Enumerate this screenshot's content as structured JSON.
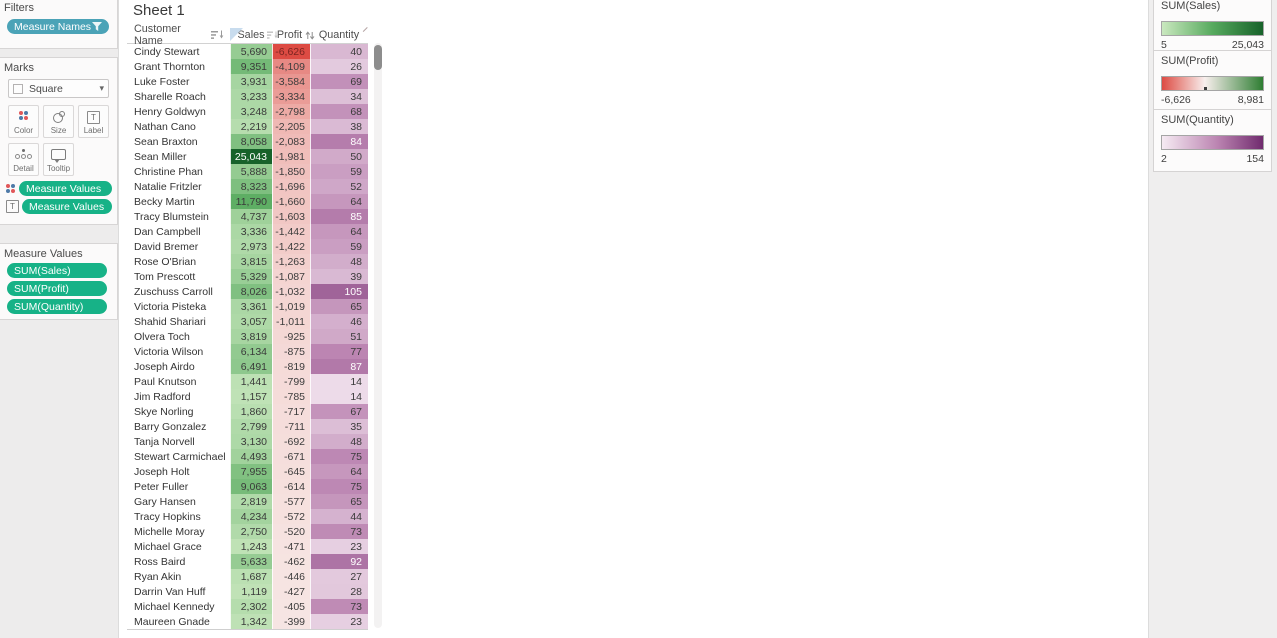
{
  "app": {
    "sheet_title": "Sheet 1"
  },
  "filters": {
    "title": "Filters",
    "pill": "Measure Names"
  },
  "marks": {
    "title": "Marks",
    "mark_type": "Square",
    "buttons": [
      {
        "label": "Color"
      },
      {
        "label": "Size"
      },
      {
        "label": "Label"
      },
      {
        "label": "Detail"
      },
      {
        "label": "Tooltip"
      }
    ],
    "pills": [
      "Measure Values",
      "Measure Values"
    ]
  },
  "measure_values": {
    "title": "Measure Values",
    "pills": [
      "SUM(Sales)",
      "SUM(Profit)",
      "SUM(Quantity)"
    ]
  },
  "table": {
    "columns": [
      "Customer Name",
      "Sales",
      "Profit",
      "Quantity"
    ],
    "rows": [
      [
        "Cindy Stewart",
        5690,
        -6626,
        40
      ],
      [
        "Grant Thornton",
        9351,
        -4109,
        26
      ],
      [
        "Luke Foster",
        3931,
        -3584,
        69
      ],
      [
        "Sharelle Roach",
        3233,
        -3334,
        34
      ],
      [
        "Henry Goldwyn",
        3248,
        -2798,
        68
      ],
      [
        "Nathan Cano",
        2219,
        -2205,
        38
      ],
      [
        "Sean Braxton",
        8058,
        -2083,
        84
      ],
      [
        "Sean Miller",
        25043,
        -1981,
        50
      ],
      [
        "Christine Phan",
        5888,
        -1850,
        59
      ],
      [
        "Natalie Fritzler",
        8323,
        -1696,
        52
      ],
      [
        "Becky Martin",
        11790,
        -1660,
        64
      ],
      [
        "Tracy Blumstein",
        4737,
        -1603,
        85
      ],
      [
        "Dan Campbell",
        3336,
        -1442,
        64
      ],
      [
        "David Bremer",
        2973,
        -1422,
        59
      ],
      [
        "Rose O'Brian",
        3815,
        -1263,
        48
      ],
      [
        "Tom Prescott",
        5329,
        -1087,
        39
      ],
      [
        "Zuschuss Carroll",
        8026,
        -1032,
        105
      ],
      [
        "Victoria Pisteka",
        3361,
        -1019,
        65
      ],
      [
        "Shahid Shariari",
        3057,
        -1011,
        46
      ],
      [
        "Olvera Toch",
        3819,
        -925,
        51
      ],
      [
        "Victoria Wilson",
        6134,
        -875,
        77
      ],
      [
        "Joseph Airdo",
        6491,
        -819,
        87
      ],
      [
        "Paul Knutson",
        1441,
        -799,
        14
      ],
      [
        "Jim Radford",
        1157,
        -785,
        14
      ],
      [
        "Skye Norling",
        1860,
        -717,
        67
      ],
      [
        "Barry Gonzalez",
        2799,
        -711,
        35
      ],
      [
        "Tanja Norvell",
        3130,
        -692,
        48
      ],
      [
        "Stewart Carmichael",
        4493,
        -671,
        75
      ],
      [
        "Joseph Holt",
        7955,
        -645,
        64
      ],
      [
        "Peter Fuller",
        9063,
        -614,
        75
      ],
      [
        "Gary Hansen",
        2819,
        -577,
        65
      ],
      [
        "Tracy Hopkins",
        4234,
        -572,
        44
      ],
      [
        "Michelle Moray",
        2750,
        -520,
        73
      ],
      [
        "Michael Grace",
        1243,
        -471,
        23
      ],
      [
        "Ross Baird",
        5633,
        -462,
        92
      ],
      [
        "Ryan Akin",
        1687,
        -446,
        27
      ],
      [
        "Darrin Van Huff",
        1119,
        -427,
        28
      ],
      [
        "Michael Kennedy",
        2302,
        -405,
        73
      ],
      [
        "Maureen Gnade",
        1342,
        -399,
        23
      ]
    ]
  },
  "legends": [
    {
      "title": "SUM(Sales)",
      "min": "5",
      "max": "25,043"
    },
    {
      "title": "SUM(Profit)",
      "min": "-6,626",
      "max": "8,981"
    },
    {
      "title": "SUM(Quantity)",
      "min": "2",
      "max": "154"
    }
  ],
  "colors": {
    "pill_blue": "#4ba3b7",
    "pill_green": "#17b287",
    "sales_scale": [
      "#cae8bf",
      "#57aa5e",
      "#17622a"
    ],
    "profit_scale": [
      "#dd4b43",
      "#f8efed",
      "#2e7d32"
    ],
    "profit_zero": 0.4245,
    "qty_scale": [
      "#f6ebf3",
      "#bb84b1",
      "#702b6e"
    ],
    "sales_range": [
      5,
      25043
    ],
    "profit_range": [
      -6626,
      8981
    ],
    "qty_range": [
      2,
      154
    ]
  }
}
